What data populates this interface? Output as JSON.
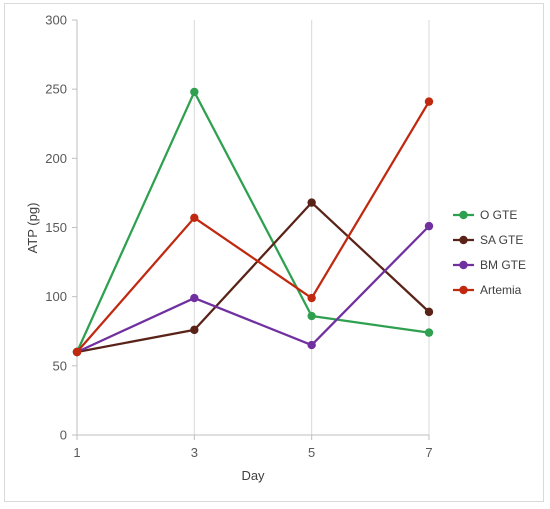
{
  "chart_data": {
    "type": "line",
    "title": "",
    "xlabel": "Day",
    "ylabel": "ATP (pg)",
    "x": [
      1,
      3,
      5,
      7
    ],
    "ylim": [
      0,
      300
    ],
    "yticks": [
      0,
      50,
      100,
      150,
      200,
      250,
      300
    ],
    "grid": "vertical",
    "legend": "right",
    "series": [
      {
        "name": "O GTE",
        "color": "#2ea04f",
        "values": [
          60,
          248,
          86,
          74
        ]
      },
      {
        "name": "SA GTE",
        "color": "#5a2318",
        "values": [
          60,
          76,
          168,
          89
        ]
      },
      {
        "name": "BM GTE",
        "color": "#7030a0",
        "values": [
          60,
          99,
          65,
          151
        ]
      },
      {
        "name": "Artemia",
        "color": "#c0290f",
        "values": [
          60,
          157,
          99,
          241
        ]
      }
    ]
  }
}
